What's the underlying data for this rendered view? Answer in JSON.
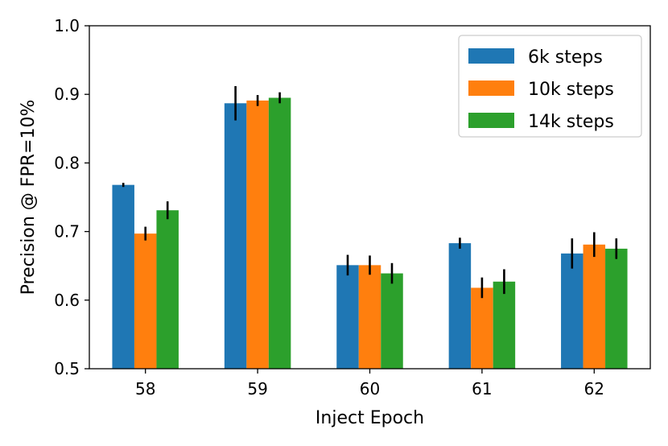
{
  "chart_data": {
    "type": "bar",
    "title": "",
    "xlabel": "Inject Epoch",
    "ylabel": "Precision @ FPR=10%",
    "ylim": [
      0.5,
      1.0
    ],
    "yticks": [
      "0.5",
      "0.6",
      "0.7",
      "0.8",
      "0.9",
      "1.0"
    ],
    "categories": [
      "58",
      "59",
      "60",
      "61",
      "62"
    ],
    "grid": false,
    "legend_position": "top-right",
    "series": [
      {
        "name": "6k steps",
        "color": "#1f77b4",
        "values": [
          0.768,
          0.887,
          0.651,
          0.683,
          0.668
        ],
        "errors": [
          0.003,
          0.025,
          0.015,
          0.008,
          0.022
        ]
      },
      {
        "name": "10k steps",
        "color": "#ff7f0e",
        "values": [
          0.697,
          0.891,
          0.651,
          0.618,
          0.681
        ],
        "errors": [
          0.01,
          0.008,
          0.014,
          0.015,
          0.018
        ]
      },
      {
        "name": "14k steps",
        "color": "#2ca02c",
        "values": [
          0.731,
          0.895,
          0.639,
          0.627,
          0.675
        ],
        "errors": [
          0.013,
          0.008,
          0.015,
          0.018,
          0.015
        ]
      }
    ]
  }
}
